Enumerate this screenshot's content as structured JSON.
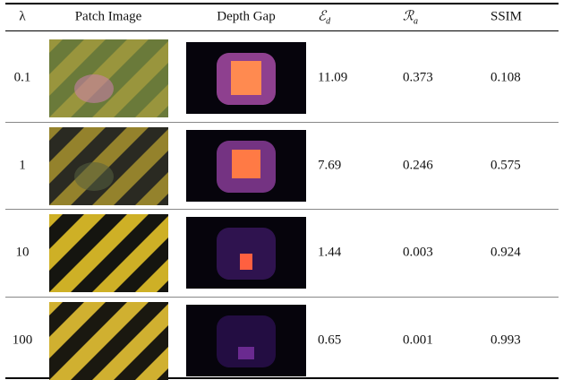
{
  "table": {
    "header": [
      {
        "text": "λ"
      },
      {
        "text": "Patch Image"
      },
      {
        "text": "Depth Gap"
      },
      {
        "text": "ℰ",
        "sub": "d"
      },
      {
        "text": "ℛ",
        "sub": "a"
      },
      {
        "text": "SSIM"
      }
    ],
    "rows": [
      [
        "0.1",
        "11.09",
        "0.373",
        "0.108"
      ],
      [
        "1",
        "7.69",
        "0.246",
        "0.575"
      ],
      [
        "10",
        "1.44",
        "0.003",
        "0.924"
      ],
      [
        "100",
        "0.65",
        "0.001",
        "0.993"
      ]
    ]
  }
}
